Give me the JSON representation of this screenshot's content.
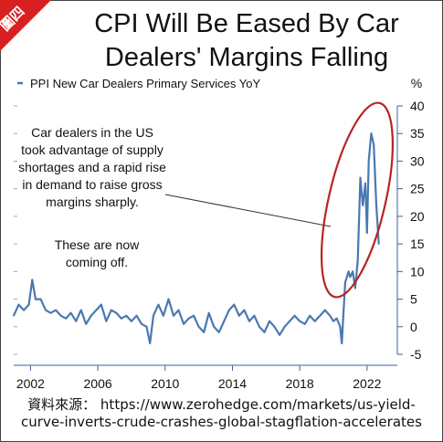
{
  "badge_text": "圖四",
  "title_line1": "CPI Will Be Eased By Car",
  "title_line2": "Dealers' Margins Falling",
  "source_line1": "資料來源： https://www.zerohedge.com/markets/us-yield-",
  "source_line2": "curve-inverts-crude-crashes-global-stagflation-accelerates",
  "colors": {
    "line": "#4a78b0",
    "ellipse": "#b82424",
    "badge": "#d92020"
  },
  "chart_data": {
    "type": "line",
    "title": "",
    "xlabel": "",
    "ylabel": "%",
    "xlim": [
      2001.0,
      2023.8
    ],
    "ylim": [
      -5,
      40
    ],
    "y_ticks": [
      -5,
      0,
      5,
      10,
      15,
      20,
      25,
      30,
      35,
      40
    ],
    "x_ticks": [
      2002,
      2006,
      2010,
      2014,
      2018,
      2022
    ],
    "legend_position": "top-left",
    "grid": false,
    "annotation_1": [
      "Car dealers in the US",
      "took advantage of supply",
      "shortages and a rapid rise",
      "in demand to raise gross",
      "margins sharply."
    ],
    "annotation_2": [
      "These are now",
      "coming off."
    ],
    "series": [
      {
        "name": "PPI New Car Dealers Primary Services YoY",
        "x": [
          2001.0,
          2001.3,
          2001.6,
          2001.9,
          2002.1,
          2002.3,
          2002.6,
          2002.9,
          2003.2,
          2003.5,
          2003.8,
          2004.1,
          2004.4,
          2004.7,
          2005.0,
          2005.3,
          2005.6,
          2005.9,
          2006.2,
          2006.5,
          2006.8,
          2007.1,
          2007.4,
          2007.7,
          2008.0,
          2008.3,
          2008.6,
          2008.9,
          2009.1,
          2009.3,
          2009.6,
          2009.9,
          2010.2,
          2010.5,
          2010.8,
          2011.1,
          2011.4,
          2011.7,
          2012.0,
          2012.3,
          2012.6,
          2012.9,
          2013.2,
          2013.5,
          2013.8,
          2014.1,
          2014.4,
          2014.7,
          2015.0,
          2015.3,
          2015.6,
          2015.9,
          2016.2,
          2016.5,
          2016.8,
          2017.1,
          2017.4,
          2017.7,
          2018.0,
          2018.3,
          2018.6,
          2018.9,
          2019.2,
          2019.5,
          2019.8,
          2020.0,
          2020.2,
          2020.4,
          2020.5,
          2020.7,
          2020.9,
          2021.0,
          2021.15,
          2021.3,
          2021.45,
          2021.6,
          2021.75,
          2021.9,
          2022.0,
          2022.1,
          2022.25,
          2022.4,
          2022.55,
          2022.7
        ],
        "y": [
          2,
          4,
          3,
          4,
          8.5,
          5,
          5,
          3,
          2.5,
          3,
          2,
          1.5,
          2.5,
          1,
          3,
          0.5,
          2,
          3,
          4,
          1,
          3,
          2.5,
          1.5,
          2,
          1,
          2,
          0.5,
          0,
          -3,
          2,
          4,
          2,
          5,
          2,
          3,
          0.5,
          1.5,
          2,
          0,
          -1,
          2.5,
          0,
          -1,
          1,
          3,
          4,
          2,
          3,
          1,
          2,
          0,
          -1,
          1,
          0,
          -1.5,
          0,
          1,
          2,
          1,
          0.5,
          2,
          1,
          2,
          3,
          2,
          1,
          1.5,
          0,
          -3,
          8,
          10,
          9,
          10,
          7,
          12,
          27,
          22,
          26,
          17,
          30,
          35,
          33,
          22,
          15
        ]
      }
    ]
  }
}
